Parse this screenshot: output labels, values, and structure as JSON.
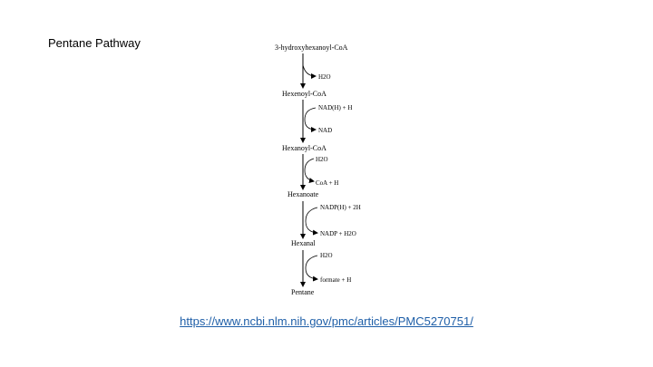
{
  "slide": {
    "title": "Pentane Pathway",
    "link_text": "https://www.ncbi.nlm.nih.gov/pmc/articles/PMC5270751/"
  },
  "pathway": {
    "compounds": [
      "3-hydroxyhexanoyl-CoA",
      "Hexenoyl-CoA",
      "Hexanoyl-CoA",
      "Hexanoate",
      "Hexanal",
      "Pentane"
    ],
    "steps": [
      {
        "cofactors": [
          "H2O"
        ]
      },
      {
        "cofactors": [
          "NAD(H) + H",
          "NAD"
        ]
      },
      {
        "cofactors": [
          "H2O",
          "CoA + H"
        ]
      },
      {
        "cofactors": [
          "NADP(H) + 2H",
          "NADP + H2O"
        ]
      },
      {
        "cofactors": [
          "H2O",
          "formate + H"
        ]
      }
    ]
  }
}
